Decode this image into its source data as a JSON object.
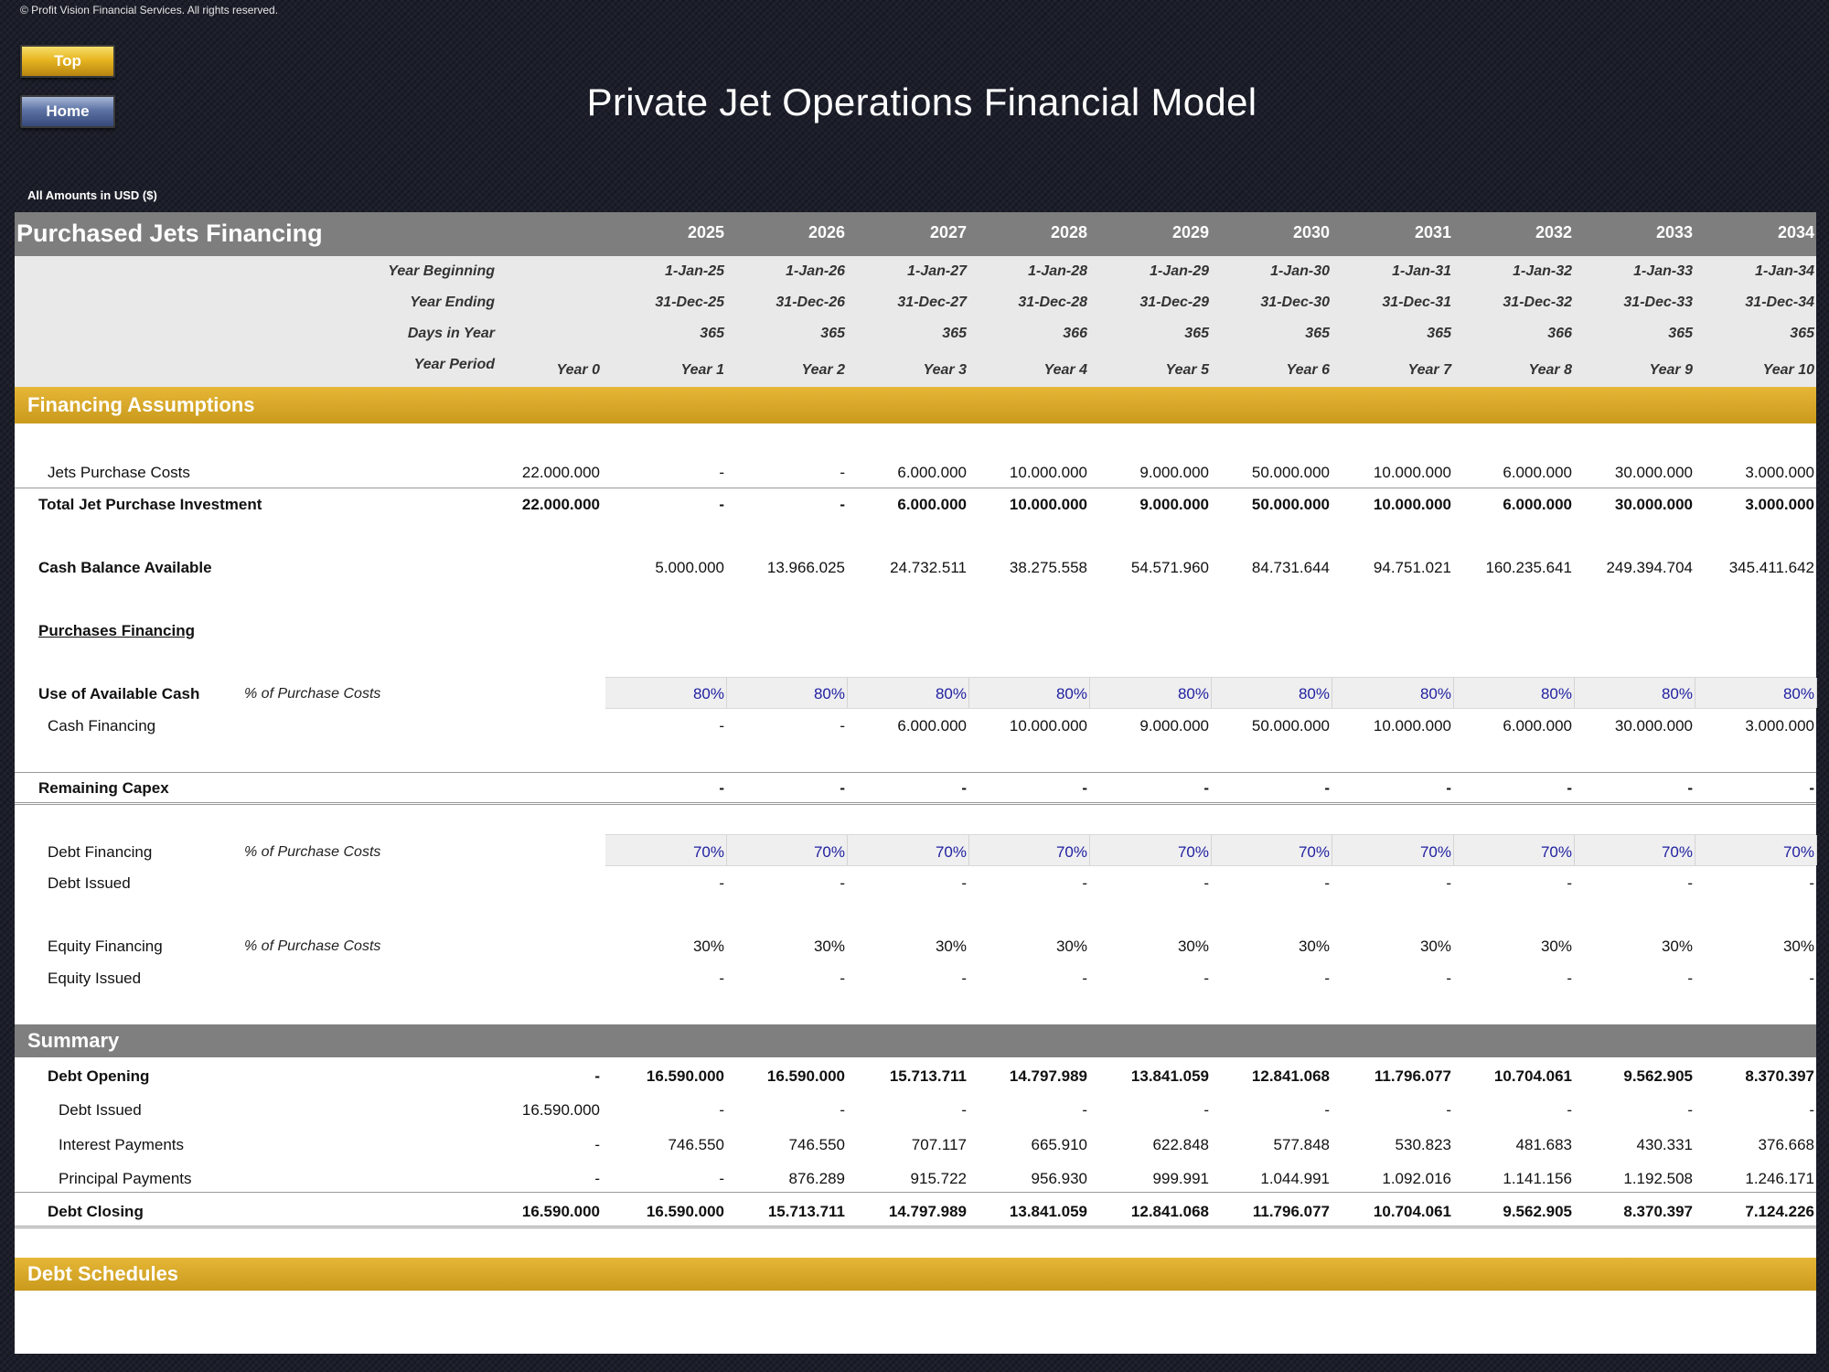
{
  "copyright": "© Profit Vision Financial Services. All rights reserved.",
  "nav": {
    "top_label": "Top",
    "home_label": "Home"
  },
  "title": "Private Jet Operations Financial Model",
  "amounts_note": "All Amounts in  USD ($)",
  "colors": {
    "gold_band": "#d6a72a",
    "grey_band": "#7f7f7f",
    "input_text": "#1f1fa0",
    "background": "#1c1f2b"
  },
  "sheet": {
    "header_title": "Purchased Jets Financing",
    "years": [
      "2025",
      "2026",
      "2027",
      "2028",
      "2029",
      "2030",
      "2031",
      "2032",
      "2033",
      "2034"
    ],
    "timeline": {
      "year_beginning": {
        "label": "Year Beginning",
        "values": [
          "1-Jan-25",
          "1-Jan-26",
          "1-Jan-27",
          "1-Jan-28",
          "1-Jan-29",
          "1-Jan-30",
          "1-Jan-31",
          "1-Jan-32",
          "1-Jan-33",
          "1-Jan-34"
        ]
      },
      "year_ending": {
        "label": "Year Ending",
        "values": [
          "31-Dec-25",
          "31-Dec-26",
          "31-Dec-27",
          "31-Dec-28",
          "31-Dec-29",
          "31-Dec-30",
          "31-Dec-31",
          "31-Dec-32",
          "31-Dec-33",
          "31-Dec-34"
        ]
      },
      "days_in_year": {
        "label": "Days in Year",
        "values": [
          "365",
          "365",
          "365",
          "366",
          "365",
          "365",
          "365",
          "366",
          "365",
          "365"
        ]
      },
      "year_period": {
        "label": "Year Period",
        "year0": "Year 0",
        "values": [
          "Year 1",
          "Year 2",
          "Year 3",
          "Year 4",
          "Year 5",
          "Year 6",
          "Year 7",
          "Year 8",
          "Year 9",
          "Year 10"
        ]
      }
    },
    "financing_assumptions": {
      "title": "Financing Assumptions",
      "jets_purchase_costs": {
        "label": "Jets Purchase Costs",
        "year0": "22.000.000",
        "values": [
          "-",
          "-",
          "6.000.000",
          "10.000.000",
          "9.000.000",
          "50.000.000",
          "10.000.000",
          "6.000.000",
          "30.000.000",
          "3.000.000"
        ]
      },
      "total_jet_purchase_investment": {
        "label": "Total Jet Purchase Investment",
        "year0": "22.000.000",
        "values": [
          "-",
          "-",
          "6.000.000",
          "10.000.000",
          "9.000.000",
          "50.000.000",
          "10.000.000",
          "6.000.000",
          "30.000.000",
          "3.000.000"
        ]
      },
      "cash_balance_available": {
        "label": "Cash Balance Available",
        "values": [
          "5.000.000",
          "13.966.025",
          "24.732.511",
          "38.275.558",
          "54.571.960",
          "84.731.644",
          "94.751.021",
          "160.235.641",
          "249.394.704",
          "345.411.642"
        ]
      },
      "purchases_financing": {
        "label": "Purchases Financing"
      },
      "use_of_available_cash": {
        "label": "Use of Available Cash",
        "unit": "% of Purchase Costs",
        "values": [
          "80%",
          "80%",
          "80%",
          "80%",
          "80%",
          "80%",
          "80%",
          "80%",
          "80%",
          "80%"
        ]
      },
      "cash_financing": {
        "label": "Cash Financing",
        "values": [
          "-",
          "-",
          "6.000.000",
          "10.000.000",
          "9.000.000",
          "50.000.000",
          "10.000.000",
          "6.000.000",
          "30.000.000",
          "3.000.000"
        ]
      },
      "remaining_capex": {
        "label": "Remaining Capex",
        "values": [
          "-",
          "-",
          "-",
          "-",
          "-",
          "-",
          "-",
          "-",
          "-",
          "-"
        ]
      },
      "debt_financing": {
        "label": "Debt Financing",
        "unit": "% of Purchase Costs",
        "values": [
          "70%",
          "70%",
          "70%",
          "70%",
          "70%",
          "70%",
          "70%",
          "70%",
          "70%",
          "70%"
        ]
      },
      "debt_issued": {
        "label": "Debt Issued",
        "values": [
          "-",
          "-",
          "-",
          "-",
          "-",
          "-",
          "-",
          "-",
          "-",
          "-"
        ]
      },
      "equity_financing": {
        "label": "Equity Financing",
        "unit": "% of Purchase Costs",
        "values": [
          "30%",
          "30%",
          "30%",
          "30%",
          "30%",
          "30%",
          "30%",
          "30%",
          "30%",
          "30%"
        ]
      },
      "equity_issued": {
        "label": "Equity Issued",
        "values": [
          "-",
          "-",
          "-",
          "-",
          "-",
          "-",
          "-",
          "-",
          "-",
          "-"
        ]
      }
    },
    "summary": {
      "title": "Summary",
      "debt_opening": {
        "label": "Debt Opening",
        "year0": "-",
        "values": [
          "16.590.000",
          "16.590.000",
          "15.713.711",
          "14.797.989",
          "13.841.059",
          "12.841.068",
          "11.796.077",
          "10.704.061",
          "9.562.905",
          "8.370.397"
        ]
      },
      "debt_issued": {
        "label": "Debt Issued",
        "year0": "16.590.000",
        "values": [
          "-",
          "-",
          "-",
          "-",
          "-",
          "-",
          "-",
          "-",
          "-",
          "-"
        ]
      },
      "interest_payments": {
        "label": "Interest Payments",
        "year0": "-",
        "values": [
          "746.550",
          "746.550",
          "707.117",
          "665.910",
          "622.848",
          "577.848",
          "530.823",
          "481.683",
          "430.331",
          "376.668"
        ]
      },
      "principal_payments": {
        "label": "Principal Payments",
        "year0": "-",
        "values": [
          "-",
          "876.289",
          "915.722",
          "956.930",
          "999.991",
          "1.044.991",
          "1.092.016",
          "1.141.156",
          "1.192.508",
          "1.246.171"
        ]
      },
      "debt_closing": {
        "label": "Debt Closing",
        "year0": "16.590.000",
        "values": [
          "16.590.000",
          "15.713.711",
          "14.797.989",
          "13.841.059",
          "12.841.068",
          "11.796.077",
          "10.704.061",
          "9.562.905",
          "8.370.397",
          "7.124.226"
        ]
      }
    },
    "debt_schedules": {
      "title": "Debt Schedules"
    }
  }
}
